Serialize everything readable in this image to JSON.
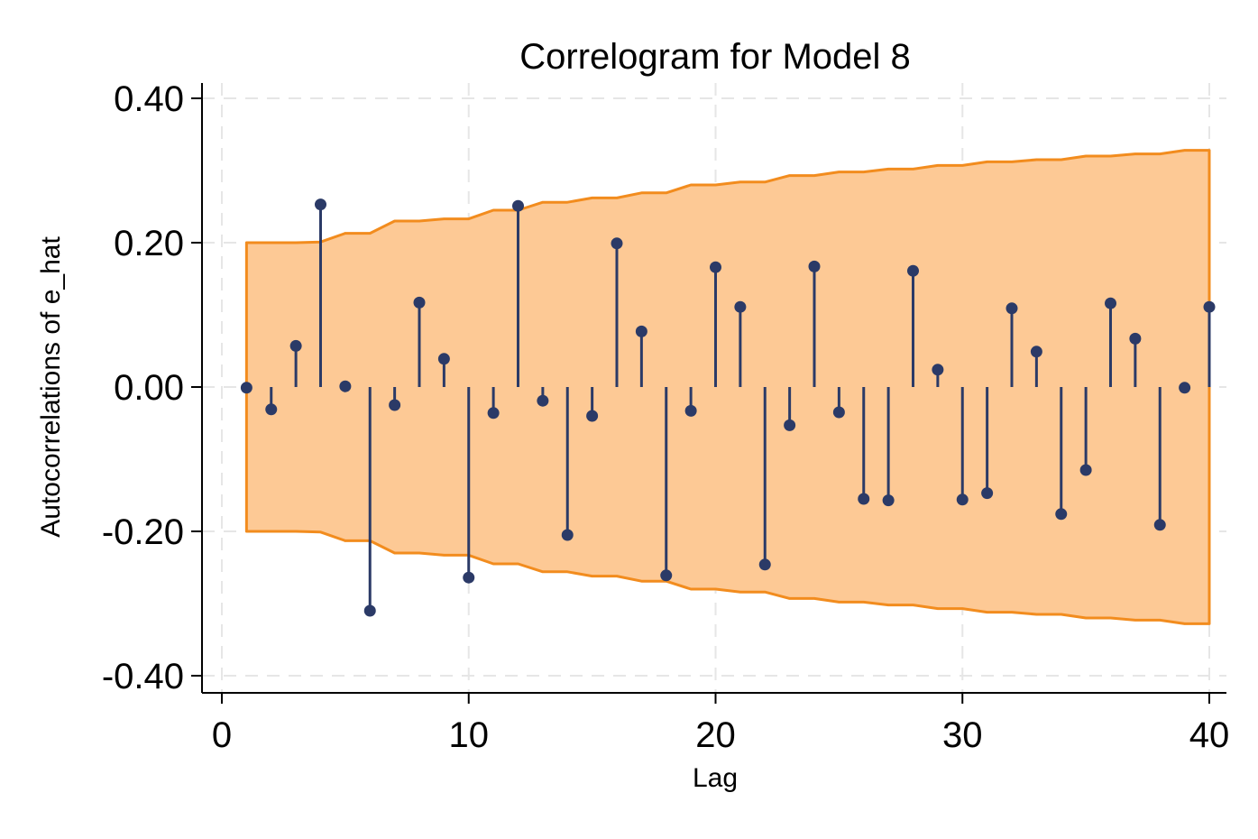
{
  "chart_data": {
    "type": "scatter",
    "subtype": "correlogram",
    "title": "Correlogram for Model 8",
    "xlabel": "Lag",
    "ylabel": "Autocorrelations of e_hat",
    "xlim": [
      0,
      40
    ],
    "ylim": [
      -0.4,
      0.4
    ],
    "x_ticks": [
      0,
      10,
      20,
      30,
      40
    ],
    "x_tick_labels": [
      "0",
      "10",
      "20",
      "30",
      "40"
    ],
    "y_ticks": [
      -0.4,
      -0.2,
      0.0,
      0.2,
      0.4
    ],
    "y_tick_labels": [
      "-0.40",
      "-0.20",
      "0.00",
      "0.20",
      "0.40"
    ],
    "grid": true,
    "colors": {
      "band_fill": "#fdc995",
      "band_line": "#f28c1e",
      "marker": "#2b3a67"
    },
    "lags": [
      1,
      2,
      3,
      4,
      5,
      6,
      7,
      8,
      9,
      10,
      11,
      12,
      13,
      14,
      15,
      16,
      17,
      18,
      19,
      20,
      21,
      22,
      23,
      24,
      25,
      26,
      27,
      28,
      29,
      30,
      31,
      32,
      33,
      34,
      35,
      36,
      37,
      38,
      39,
      40
    ],
    "autocorrelations": [
      -0.001,
      -0.031,
      0.057,
      0.253,
      0.001,
      -0.31,
      -0.025,
      0.117,
      0.039,
      -0.264,
      -0.036,
      0.251,
      -0.019,
      -0.205,
      -0.04,
      0.199,
      0.077,
      -0.261,
      -0.033,
      0.166,
      0.111,
      -0.246,
      -0.053,
      0.167,
      -0.035,
      -0.155,
      -0.157,
      0.161,
      0.024,
      -0.156,
      -0.147,
      0.109,
      0.049,
      -0.176,
      -0.115,
      0.116,
      0.067,
      -0.191,
      -0.001,
      0.111
    ],
    "confidence_band": [
      0.2,
      0.2,
      0.2,
      0.201,
      0.213,
      0.213,
      0.23,
      0.23,
      0.233,
      0.233,
      0.245,
      0.245,
      0.256,
      0.256,
      0.262,
      0.262,
      0.269,
      0.269,
      0.28,
      0.28,
      0.284,
      0.284,
      0.293,
      0.293,
      0.298,
      0.298,
      0.302,
      0.302,
      0.307,
      0.307,
      0.312,
      0.312,
      0.315,
      0.315,
      0.32,
      0.32,
      0.323,
      0.323,
      0.328,
      0.328
    ]
  }
}
